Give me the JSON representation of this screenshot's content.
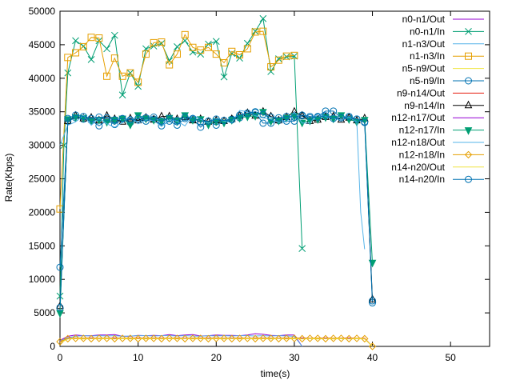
{
  "chart_data": {
    "type": "line",
    "title": "",
    "xlabel": "time(s)",
    "ylabel": "Rate(Kbps)",
    "xlim": [
      0,
      55
    ],
    "ylim": [
      0,
      50000
    ],
    "xticks": [
      0,
      10,
      20,
      30,
      40,
      50
    ],
    "yticks": [
      0,
      5000,
      10000,
      15000,
      20000,
      25000,
      30000,
      35000,
      40000,
      45000,
      50000
    ],
    "grid": false,
    "legend_position": "top-right",
    "series": [
      {
        "name": "n0-n1/Out",
        "color": "#9400d3",
        "marker": "none",
        "x": [
          0,
          1,
          2,
          3,
          4,
          5,
          6,
          7,
          8,
          9,
          10,
          11,
          12,
          13,
          14,
          15,
          16,
          17,
          18,
          19,
          20,
          21,
          22,
          23,
          24,
          25,
          26,
          27,
          28,
          29,
          30,
          31
        ],
        "y": [
          900,
          1500,
          1700,
          1600,
          1600,
          1700,
          1700,
          1750,
          1500,
          1500,
          1650,
          1600,
          1650,
          1600,
          1750,
          1600,
          1700,
          1750,
          1550,
          1600,
          1700,
          1650,
          1650,
          1600,
          1700,
          1900,
          1800,
          1650,
          1600,
          1700,
          1700,
          0
        ]
      },
      {
        "name": "n0-n1/In",
        "color": "#009e73",
        "marker": "cross",
        "x": [
          0,
          0.5,
          1,
          2,
          3,
          4,
          5,
          6,
          7,
          8,
          9,
          10,
          11,
          12,
          13,
          14,
          15,
          16,
          17,
          18,
          19,
          20,
          21,
          22,
          23,
          24,
          25,
          26,
          27,
          28,
          29,
          30,
          31
        ],
        "y": [
          7500,
          30000,
          40800,
          45600,
          44800,
          42800,
          45600,
          44400,
          46400,
          37500,
          40800,
          38800,
          44400,
          44800,
          45200,
          42600,
          44700,
          45600,
          43900,
          43600,
          45100,
          45500,
          40200,
          43700,
          43000,
          45200,
          47000,
          48900,
          41000,
          42900,
          43200,
          43300,
          14600
        ]
      },
      {
        "name": "n1-n3/Out",
        "color": "#56b4e9",
        "marker": "none",
        "x": [
          0,
          1,
          2,
          3,
          4,
          5,
          6,
          7,
          8,
          9,
          10,
          11,
          12,
          13,
          14,
          15,
          16,
          17,
          18,
          19,
          20,
          21,
          22,
          23,
          24,
          25,
          26,
          27,
          28,
          29,
          30,
          31
        ],
        "y": [
          800,
          1300,
          1500,
          1600,
          1550,
          1600,
          1550,
          1600,
          1500,
          1550,
          1600,
          1600,
          1550,
          1600,
          1600,
          1550,
          1600,
          1550,
          1500,
          1600,
          1550,
          1600,
          1550,
          1600,
          1600,
          1550,
          1600,
          1550,
          1600,
          1550,
          1500,
          0
        ]
      },
      {
        "name": "n1-n3/In",
        "color": "#e69f00",
        "marker": "square",
        "x": [
          0,
          1,
          2,
          3,
          4,
          5,
          6,
          7,
          8,
          9,
          10,
          11,
          12,
          13,
          14,
          15,
          16,
          17,
          18,
          19,
          20,
          21,
          22,
          23,
          24,
          25,
          26,
          27,
          28,
          29,
          30
        ],
        "y": [
          20500,
          43100,
          43800,
          44700,
          46100,
          46000,
          40300,
          43000,
          40300,
          40800,
          39400,
          43600,
          45300,
          45400,
          42000,
          43600,
          46500,
          44600,
          44200,
          44600,
          43600,
          42300,
          44000,
          43500,
          44400,
          46900,
          47000,
          41700,
          42700,
          43300,
          43400
        ]
      },
      {
        "name": "n5-n9/Out",
        "color": "#f0e442",
        "marker": "none",
        "x": [
          0,
          1,
          2,
          3,
          4,
          5,
          6,
          7,
          8,
          9,
          10,
          11,
          12,
          13,
          14,
          15,
          16,
          17,
          18,
          19,
          20,
          21,
          22,
          23,
          24,
          25,
          26,
          27,
          28,
          29,
          30,
          31,
          32,
          33,
          34,
          35,
          36,
          37,
          38,
          39,
          40
        ],
        "y": [
          700,
          1150,
          1200,
          1250,
          1200,
          1200,
          1250,
          1200,
          1200,
          1250,
          1200,
          1250,
          1200,
          1200,
          1250,
          1200,
          1200,
          1250,
          1200,
          1250,
          1200,
          1200,
          1250,
          1200,
          1200,
          1250,
          1200,
          1250,
          1200,
          1200,
          1250,
          1200,
          1200,
          1250,
          1200,
          1200,
          1250,
          1200,
          1200,
          1200,
          0
        ]
      },
      {
        "name": "n5-n9/In",
        "color": "#0072b2",
        "marker": "circle",
        "x": [
          0,
          1,
          2,
          3,
          4,
          5,
          6,
          7,
          8,
          9,
          10,
          11,
          12,
          13,
          14,
          15,
          16,
          17,
          18,
          19,
          20,
          21,
          22,
          23,
          24,
          25,
          26,
          27,
          28,
          29,
          30,
          31,
          32,
          33,
          34,
          35,
          36,
          37,
          38,
          39,
          40
        ],
        "y": [
          11800,
          33600,
          34100,
          33900,
          33700,
          32900,
          33700,
          33100,
          33900,
          33400,
          33800,
          33600,
          33900,
          32900,
          33600,
          33000,
          34000,
          33900,
          32700,
          33600,
          33000,
          33700,
          33900,
          34100,
          34600,
          34900,
          33300,
          33300,
          33700,
          33600,
          33600,
          34400,
          34100,
          34300,
          35100,
          35100,
          34100,
          34100,
          33900,
          33500,
          6500
        ]
      },
      {
        "name": "n9-n14/Out",
        "color": "#e51e10",
        "marker": "none",
        "x": [
          0,
          1,
          2,
          3,
          4,
          5,
          6,
          7,
          8,
          9,
          10,
          11,
          12,
          13,
          14,
          15,
          16,
          17,
          18,
          19,
          20,
          21,
          22,
          23,
          24,
          25,
          26,
          27,
          28,
          29,
          30,
          31,
          32,
          33,
          34,
          35,
          36,
          37,
          38,
          39,
          40
        ],
        "y": [
          600,
          1200,
          1250,
          1200,
          1250,
          1200,
          1200,
          1250,
          1200,
          1200,
          1250,
          1200,
          1250,
          1200,
          1200,
          1250,
          1200,
          1200,
          1250,
          1200,
          1250,
          1200,
          1200,
          1250,
          1200,
          1200,
          1250,
          1200,
          1200,
          1250,
          1200,
          1250,
          1200,
          1200,
          1250,
          1200,
          1200,
          1250,
          1200,
          1200,
          0
        ]
      },
      {
        "name": "n9-n14/In",
        "color": "#000000",
        "marker": "triangle",
        "x": [
          0,
          1,
          2,
          3,
          4,
          5,
          6,
          7,
          8,
          9,
          10,
          11,
          12,
          13,
          14,
          15,
          16,
          17,
          18,
          19,
          20,
          21,
          22,
          23,
          24,
          25,
          26,
          27,
          28,
          29,
          30,
          31,
          32,
          33,
          34,
          35,
          36,
          37,
          38,
          39,
          40
        ],
        "y": [
          6000,
          33600,
          34400,
          34000,
          34100,
          33700,
          34400,
          33900,
          33500,
          34000,
          33700,
          34100,
          33800,
          34300,
          34300,
          33900,
          34200,
          33700,
          33900,
          33500,
          33700,
          33600,
          33900,
          34400,
          34800,
          34400,
          35000,
          34300,
          33700,
          34200,
          35000,
          34400,
          33600,
          33800,
          34200,
          34300,
          33800,
          34100,
          33700,
          34000,
          7000
        ]
      },
      {
        "name": "n12-n17/Out",
        "color": "#9400d3",
        "marker": "none",
        "x": [
          0,
          1,
          2,
          3,
          4,
          5,
          6,
          7,
          8,
          9,
          10,
          11,
          12,
          13,
          14,
          15,
          16,
          17,
          18,
          19,
          20,
          21,
          22,
          23,
          24,
          25,
          26,
          27,
          28,
          29,
          30,
          31,
          32,
          33,
          34,
          35,
          36,
          37,
          38,
          39,
          40
        ],
        "y": [
          600,
          1150,
          1200,
          1150,
          1200,
          1150,
          1200,
          1200,
          1150,
          1200,
          1150,
          1200,
          1200,
          1150,
          1200,
          1150,
          1200,
          1200,
          1150,
          1200,
          1150,
          1200,
          1200,
          1150,
          1200,
          1150,
          1200,
          1200,
          1150,
          1200,
          1150,
          1200,
          1200,
          1150,
          1200,
          1150,
          1200,
          1200,
          1150,
          1150,
          0
        ]
      },
      {
        "name": "n12-n17/In",
        "color": "#009e73",
        "marker": "triangle-down",
        "x": [
          0,
          1,
          2,
          3,
          4,
          5,
          6,
          7,
          8,
          9,
          10,
          11,
          12,
          13,
          14,
          15,
          16,
          17,
          18,
          19,
          20,
          21,
          22,
          23,
          24,
          25,
          26,
          27,
          28,
          29,
          30,
          31,
          32,
          33,
          34,
          35,
          36,
          37,
          38,
          39,
          40
        ],
        "y": [
          5000,
          33900,
          34200,
          34100,
          33700,
          33800,
          33500,
          33800,
          34000,
          33100,
          34500,
          34000,
          33800,
          33600,
          34100,
          33700,
          34500,
          33800,
          33900,
          33100,
          33600,
          33400,
          33800,
          34100,
          34300,
          34400,
          35000,
          33600,
          33700,
          34100,
          34400,
          33400,
          33700,
          33900,
          34200,
          34000,
          34500,
          33900,
          33500,
          33800,
          12500
        ]
      },
      {
        "name": "n12-n18/Out",
        "color": "#56b4e9",
        "marker": "none",
        "x": [
          0,
          1,
          2,
          3,
          4,
          5,
          6,
          7,
          8,
          9,
          10,
          11,
          12,
          13,
          14,
          15,
          16,
          17,
          18,
          19,
          20,
          21,
          22,
          23,
          24,
          25,
          26,
          27,
          28,
          29,
          30,
          31,
          32,
          33,
          34,
          35,
          36,
          37,
          38,
          38.5,
          39
        ],
        "y": [
          30000,
          33000,
          33500,
          34500,
          33000,
          34000,
          33200,
          32700,
          33400,
          34200,
          33200,
          33800,
          33700,
          32800,
          33800,
          33600,
          32900,
          34500,
          33900,
          33300,
          34000,
          33600,
          33400,
          35200,
          35000,
          34400,
          34100,
          33900,
          33400,
          33500,
          35000,
          33300,
          33300,
          34700,
          34300,
          34000,
          33800,
          34200,
          33500,
          20000,
          14500
        ]
      },
      {
        "name": "n12-n18/In",
        "color": "#e69f00",
        "marker": "diamond",
        "x": [
          0,
          1,
          2,
          3,
          4,
          5,
          6,
          7,
          8,
          9,
          10,
          11,
          12,
          13,
          14,
          15,
          16,
          17,
          18,
          19,
          20,
          21,
          22,
          23,
          24,
          25,
          26,
          27,
          28,
          29,
          30,
          31,
          32,
          33,
          34,
          35,
          36,
          37,
          38,
          39,
          40
        ],
        "y": [
          700,
          1150,
          1200,
          1200,
          1150,
          1200,
          1200,
          1150,
          1200,
          1200,
          1150,
          1200,
          1200,
          1150,
          1200,
          1200,
          1150,
          1200,
          1200,
          1150,
          1200,
          1200,
          1150,
          1200,
          1200,
          1150,
          1200,
          1200,
          1150,
          1200,
          1200,
          1150,
          1200,
          1200,
          1150,
          1200,
          1200,
          1150,
          1200,
          1150,
          0
        ]
      },
      {
        "name": "n14-n20/Out",
        "color": "#f0e442",
        "marker": "none",
        "x": [
          0,
          1,
          2,
          3,
          4,
          5,
          6,
          7,
          8,
          9,
          10,
          11,
          12,
          13,
          14,
          15,
          16,
          17,
          18,
          19,
          20,
          21,
          22,
          23,
          24,
          25,
          26,
          27,
          28,
          29,
          30,
          31,
          32,
          33,
          34,
          35,
          36,
          37,
          38,
          39,
          40
        ],
        "y": [
          500,
          1100,
          1150,
          1100,
          1150,
          1100,
          1150,
          1100,
          1150,
          1100,
          1150,
          1100,
          1150,
          1100,
          1150,
          1100,
          1150,
          1100,
          1150,
          1100,
          1150,
          1100,
          1150,
          1100,
          1150,
          1100,
          1150,
          1100,
          1150,
          1100,
          1150,
          1100,
          1150,
          1100,
          1150,
          1100,
          1150,
          1100,
          1150,
          1100,
          0
        ]
      },
      {
        "name": "n14-n20/In",
        "color": "#0072b2",
        "marker": "circle",
        "x": [
          0,
          1,
          2,
          3,
          4,
          5,
          6,
          7,
          8,
          9,
          10,
          11,
          12,
          13,
          14,
          15,
          16,
          17,
          18,
          19,
          20,
          21,
          22,
          23,
          24,
          25,
          26,
          27,
          28,
          29,
          30,
          31,
          32,
          33,
          34,
          35,
          36,
          37,
          38,
          39,
          40
        ],
        "y": [
          5800,
          34000,
          34500,
          34300,
          34000,
          34200,
          34100,
          33800,
          34000,
          33800,
          34000,
          34100,
          34200,
          33600,
          34000,
          33700,
          34200,
          34000,
          33500,
          33600,
          33900,
          33700,
          33800,
          34500,
          34800,
          35000,
          34600,
          34200,
          34100,
          34300,
          34200,
          34500,
          34300,
          34200,
          34400,
          34000,
          34100,
          34300,
          33900,
          33400,
          6800
        ]
      }
    ]
  }
}
